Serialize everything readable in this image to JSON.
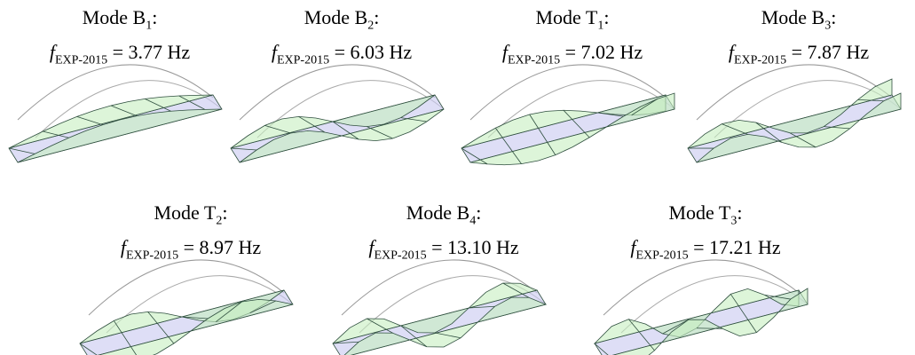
{
  "modes": [
    {
      "prefix": "Mode B",
      "index": "1",
      "suffix": ":",
      "symbol": "f",
      "symbol_sub": "EXP-2015",
      "frequency": "= 3.77 Hz"
    },
    {
      "prefix": "Mode B",
      "index": "2",
      "suffix": ":",
      "symbol": "f",
      "symbol_sub": "EXP-2015",
      "frequency": "= 6.03 Hz"
    },
    {
      "prefix": "Mode T",
      "index": "1",
      "suffix": ":",
      "symbol": "f",
      "symbol_sub": "EXP-2015",
      "frequency": "= 7.02 Hz"
    },
    {
      "prefix": "Mode B",
      "index": "3",
      "suffix": ":",
      "symbol": "f",
      "symbol_sub": "EXP-2015",
      "frequency": "= 7.87 Hz"
    },
    {
      "prefix": "Mode T",
      "index": "2",
      "suffix": ":",
      "symbol": "f",
      "symbol_sub": "EXP-2015",
      "frequency": "= 8.97 Hz"
    },
    {
      "prefix": "Mode B",
      "index": "4",
      "suffix": ":",
      "symbol": "f",
      "symbol_sub": "EXP-2015",
      "frequency": "= 13.10 Hz"
    },
    {
      "prefix": "Mode T",
      "index": "3",
      "suffix": ":",
      "symbol": "f",
      "symbol_sub": "EXP-2015",
      "frequency": "= 17.21 Hz"
    }
  ]
}
